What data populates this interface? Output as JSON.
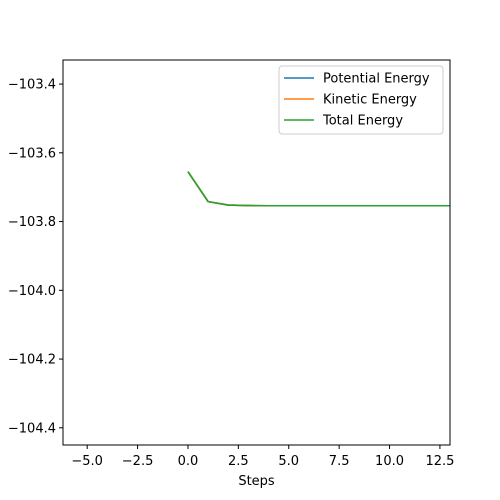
{
  "chart_data": {
    "type": "line",
    "title": "",
    "xlabel": "Steps",
    "ylabel": "",
    "xlim": [
      -6.2,
      13.0
    ],
    "ylim": [
      -104.45,
      -103.33
    ],
    "grid": false,
    "legend_position": "top-right",
    "xticks": [
      -5.0,
      -2.5,
      0.0,
      2.5,
      5.0,
      7.5,
      10.0,
      12.5
    ],
    "xtick_labels": [
      "−5.0",
      "−2.5",
      "0.0",
      "2.5",
      "5.0",
      "7.5",
      "10.0",
      "12.5"
    ],
    "yticks": [
      -103.4,
      -103.6,
      -103.8,
      -104.0,
      -104.2,
      -104.4
    ],
    "ytick_labels": [
      "−103.4",
      "−103.6",
      "−103.8",
      "−104.0",
      "−104.2",
      "−104.4"
    ],
    "x": [
      0,
      1,
      2,
      3,
      4,
      5,
      6,
      7,
      8,
      9,
      10,
      11,
      12,
      13
    ],
    "series": [
      {
        "name": "Potential Energy",
        "color": "#1f77b4",
        "values": [
          -103.655,
          -103.742,
          -103.752,
          -103.7535,
          -103.754,
          -103.754,
          -103.754,
          -103.754,
          -103.754,
          -103.754,
          -103.754,
          -103.754,
          -103.754,
          -103.754
        ]
      },
      {
        "name": "Kinetic Energy",
        "color": "#ff7f0e",
        "values": [
          -103.655,
          -103.742,
          -103.752,
          -103.7535,
          -103.754,
          -103.754,
          -103.754,
          -103.754,
          -103.754,
          -103.754,
          -103.754,
          -103.754,
          -103.754,
          -103.754
        ]
      },
      {
        "name": "Total Energy",
        "color": "#2ca02c",
        "values": [
          -103.655,
          -103.742,
          -103.752,
          -103.7535,
          -103.754,
          -103.754,
          -103.754,
          -103.754,
          -103.754,
          -103.754,
          -103.754,
          -103.754,
          -103.754,
          -103.754
        ]
      }
    ]
  }
}
